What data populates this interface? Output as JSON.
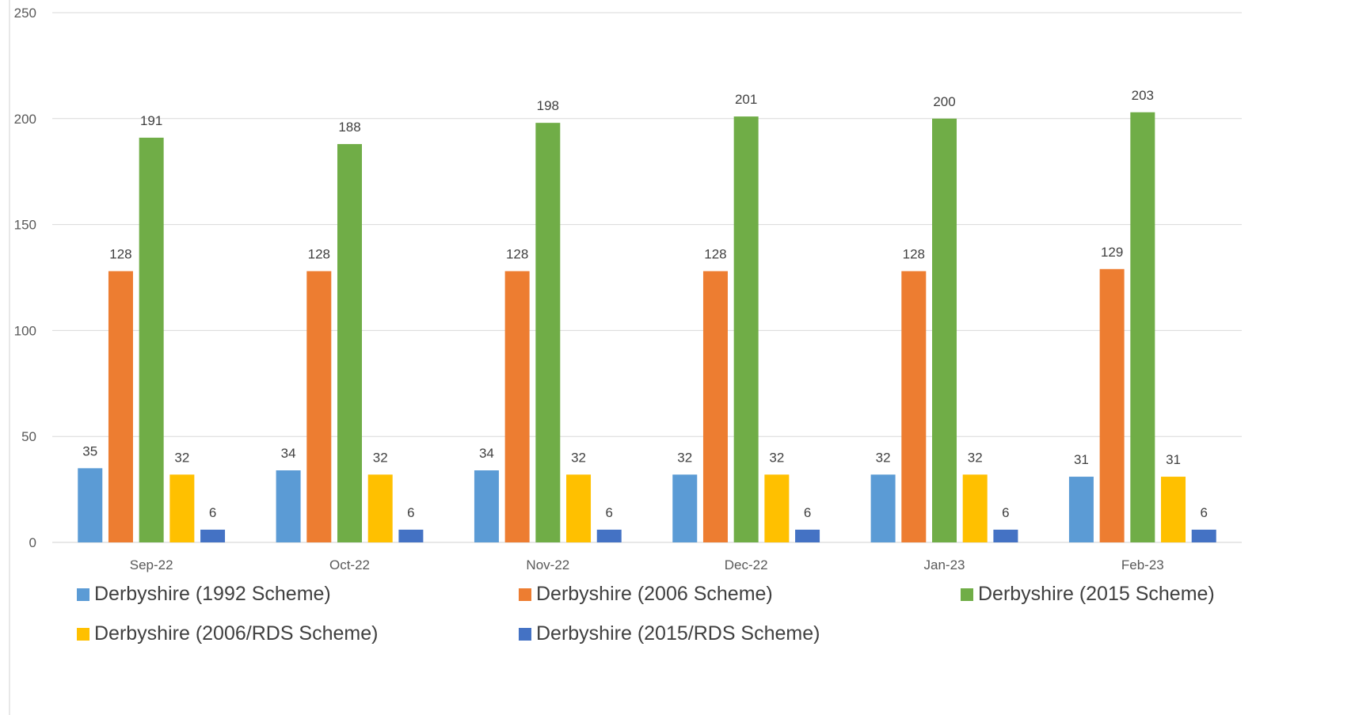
{
  "chart_data": {
    "type": "bar",
    "categories": [
      "Sep-22",
      "Oct-22",
      "Nov-22",
      "Dec-22",
      "Jan-23",
      "Feb-23"
    ],
    "series": [
      {
        "name": "Derbyshire (1992 Scheme)",
        "color": "#5B9BD5",
        "values": [
          35,
          34,
          34,
          32,
          32,
          31
        ]
      },
      {
        "name": "Derbyshire (2006 Scheme)",
        "color": "#ED7D31",
        "values": [
          128,
          128,
          128,
          128,
          128,
          129
        ]
      },
      {
        "name": "Derbyshire (2015 Scheme)",
        "color": "#70AD47",
        "values": [
          191,
          188,
          198,
          201,
          200,
          203
        ]
      },
      {
        "name": "Derbyshire (2006/RDS Scheme)",
        "color": "#FFC000",
        "values": [
          32,
          32,
          32,
          32,
          32,
          31
        ]
      },
      {
        "name": "Derbyshire (2015/RDS Scheme)",
        "color": "#4472C4",
        "values": [
          6,
          6,
          6,
          6,
          6,
          6
        ]
      }
    ],
    "yticks": [
      "0",
      "50",
      "100",
      "150",
      "200",
      "250"
    ],
    "ylim": [
      0,
      250
    ],
    "grid": true,
    "legend": "bottom",
    "title": "",
    "xlabel": "",
    "ylabel": ""
  }
}
